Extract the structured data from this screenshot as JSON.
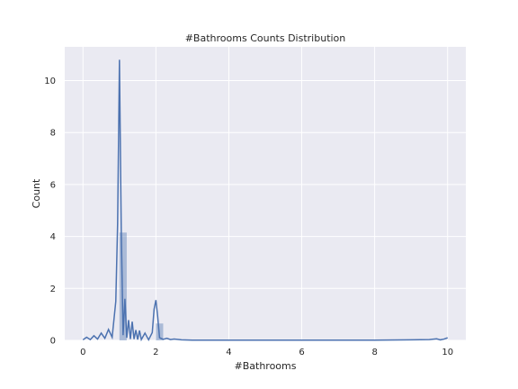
{
  "chart_data": {
    "type": "bar",
    "title": "#Bathrooms Counts Distribution",
    "xlabel": "#Bathrooms",
    "ylabel": "Count",
    "xlim": [
      -0.5,
      10.5
    ],
    "ylim": [
      0,
      11.3
    ],
    "xticks": [
      "0",
      "2",
      "4",
      "6",
      "8",
      "10"
    ],
    "yticks": [
      "0",
      "2",
      "4",
      "6",
      "8",
      "10"
    ],
    "grid": true,
    "background_color": "#eaeaf2",
    "histogram_color": "#4c72b0",
    "line_color": "#4c72b0",
    "histogram": {
      "bins": [
        {
          "x0": 1.0,
          "x1": 1.2,
          "value": 4.15
        },
        {
          "x0": 2.0,
          "x1": 2.2,
          "value": 0.65
        }
      ]
    },
    "kde": {
      "x": [
        0.0,
        0.1,
        0.2,
        0.3,
        0.4,
        0.5,
        0.6,
        0.7,
        0.8,
        0.9,
        0.95,
        1.0,
        1.05,
        1.1,
        1.15,
        1.2,
        1.25,
        1.3,
        1.35,
        1.4,
        1.45,
        1.5,
        1.55,
        1.6,
        1.7,
        1.8,
        1.9,
        1.95,
        2.0,
        2.05,
        2.1,
        2.2,
        2.3,
        2.4,
        2.5,
        2.7,
        3.0,
        4.0,
        5.0,
        6.0,
        7.0,
        8.0,
        9.0,
        9.5,
        9.7,
        9.8,
        9.9,
        10.0
      ],
      "y": [
        0.02,
        0.12,
        0.03,
        0.18,
        0.05,
        0.28,
        0.08,
        0.42,
        0.12,
        1.5,
        4.5,
        10.8,
        4.2,
        0.2,
        1.6,
        0.1,
        0.78,
        0.05,
        0.72,
        0.05,
        0.4,
        0.03,
        0.38,
        0.03,
        0.28,
        0.02,
        0.3,
        1.2,
        1.55,
        0.9,
        0.1,
        0.04,
        0.08,
        0.03,
        0.05,
        0.02,
        0.01,
        0.01,
        0.01,
        0.01,
        0.01,
        0.01,
        0.02,
        0.03,
        0.06,
        0.02,
        0.05,
        0.1
      ]
    }
  }
}
